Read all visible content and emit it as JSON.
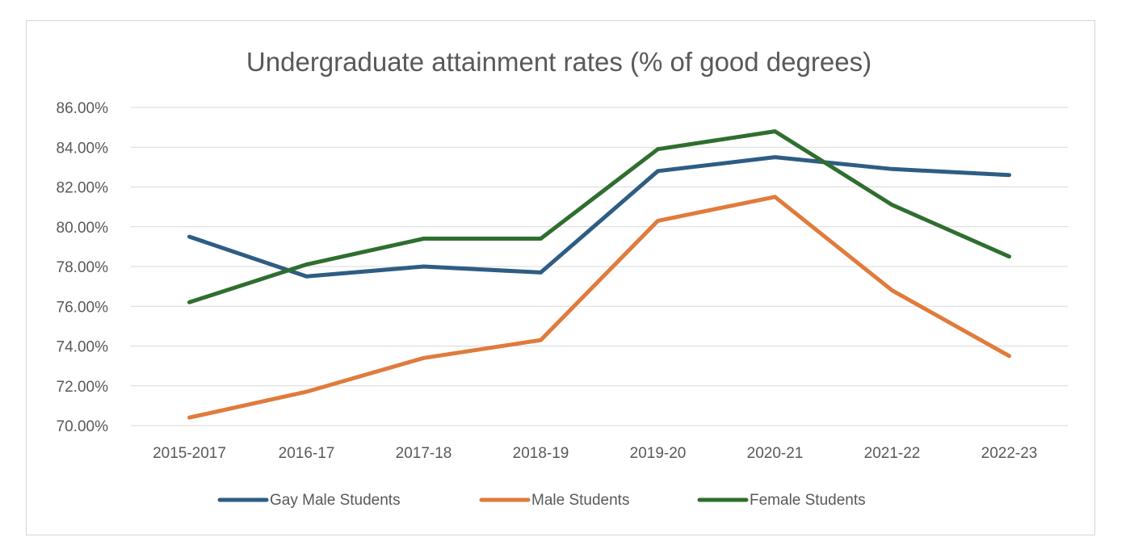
{
  "chart_data": {
    "type": "line",
    "title": "Undergraduate attainment rates (% of good degrees)",
    "xlabel": "",
    "ylabel": "",
    "categories": [
      "2015-2017",
      "2016-17",
      "2017-18",
      "2018-19",
      "2019-20",
      "2020-21",
      "2021-22",
      "2022-23"
    ],
    "ylim": [
      70,
      86
    ],
    "ytick_values": [
      70,
      72,
      74,
      76,
      78,
      80,
      82,
      84,
      86
    ],
    "ytick_labels": [
      "70.00%",
      "72.00%",
      "74.00%",
      "76.00%",
      "78.00%",
      "80.00%",
      "82.00%",
      "84.00%",
      "86.00%"
    ],
    "grid": true,
    "legend_position": "bottom",
    "series": [
      {
        "name": "Gay Male Students",
        "color": "#2e5d84",
        "values": [
          79.5,
          77.5,
          78.0,
          77.7,
          82.8,
          83.5,
          82.9,
          82.6
        ]
      },
      {
        "name": "Male Students",
        "color": "#e07b3c",
        "values": [
          70.4,
          71.7,
          73.4,
          74.3,
          80.3,
          81.5,
          76.8,
          73.5
        ]
      },
      {
        "name": "Female Students",
        "color": "#2f6e2f",
        "values": [
          76.2,
          78.1,
          79.4,
          79.4,
          83.9,
          84.8,
          81.1,
          78.5
        ]
      }
    ]
  }
}
